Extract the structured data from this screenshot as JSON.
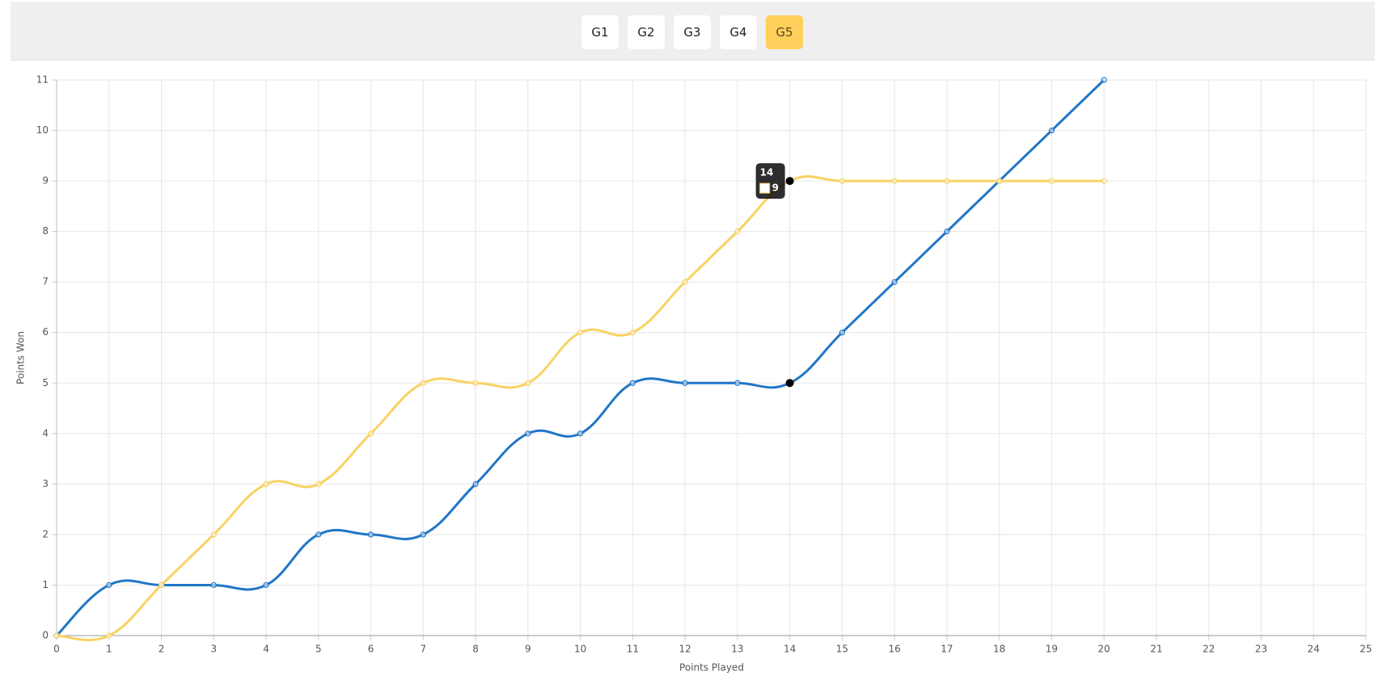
{
  "tabs": [
    {
      "label": "G1",
      "active": false
    },
    {
      "label": "G2",
      "active": false
    },
    {
      "label": "G3",
      "active": false
    },
    {
      "label": "G4",
      "active": false
    },
    {
      "label": "G5",
      "active": true
    }
  ],
  "chart_data": {
    "type": "line",
    "x_label": "Points Played",
    "y_label": "Points Won",
    "x": [
      0,
      1,
      2,
      3,
      4,
      5,
      6,
      7,
      8,
      9,
      10,
      11,
      12,
      13,
      14,
      15,
      16,
      17,
      18,
      19,
      20
    ],
    "series": [
      {
        "color": "#2176c7",
        "values": [
          0,
          1,
          1,
          1,
          1,
          2,
          2,
          2,
          3,
          4,
          4,
          5,
          5,
          5,
          5,
          6,
          7,
          8,
          9,
          10,
          11
        ]
      },
      {
        "color": "#f9d262",
        "values": [
          0,
          0,
          1,
          2,
          3,
          3,
          4,
          5,
          5,
          5,
          6,
          6,
          7,
          8,
          9,
          9,
          9,
          9,
          9,
          9,
          9
        ]
      }
    ],
    "xlim": [
      0,
      25
    ],
    "xticks": [
      0,
      1,
      2,
      3,
      4,
      5,
      6,
      7,
      8,
      9,
      10,
      11,
      12,
      13,
      14,
      15,
      16,
      17,
      18,
      19,
      20,
      21,
      22,
      23,
      24,
      25
    ],
    "ylim": [
      0,
      11
    ],
    "yticks": [
      0,
      1,
      2,
      3,
      4,
      5,
      6,
      7,
      8,
      9,
      10,
      11
    ],
    "grid": true,
    "tooltip": {
      "title": 14,
      "value": 9
    }
  }
}
